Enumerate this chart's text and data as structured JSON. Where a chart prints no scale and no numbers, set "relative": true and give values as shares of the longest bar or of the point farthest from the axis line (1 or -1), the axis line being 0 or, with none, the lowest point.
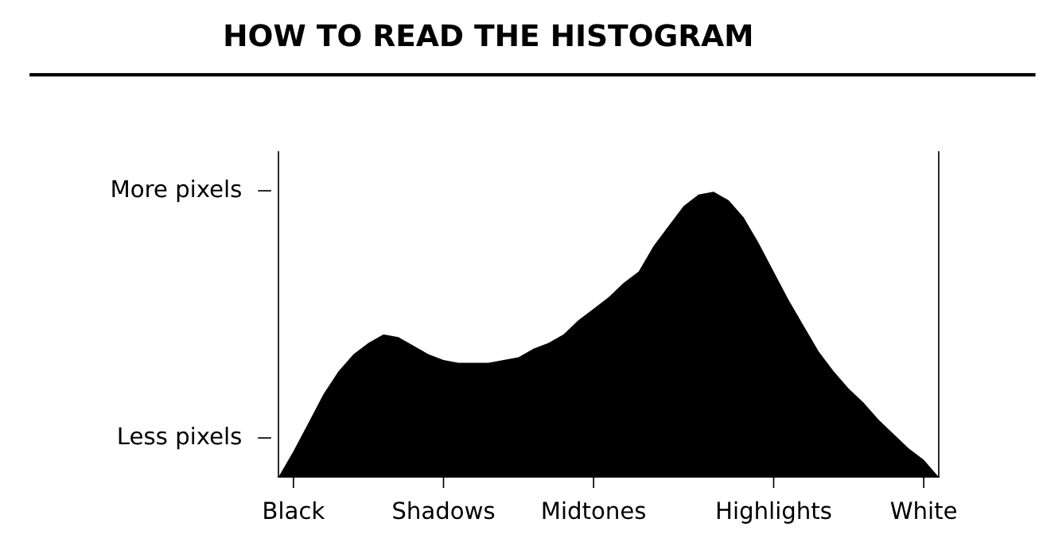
{
  "chart_data": {
    "type": "area",
    "title": "HOW TO READ THE HISTOGRAM",
    "relative": true,
    "categories": [
      null,
      "Black",
      null,
      null,
      null,
      null,
      null,
      null,
      null,
      null,
      null,
      "Shadows",
      null,
      null,
      null,
      null,
      null,
      null,
      null,
      null,
      null,
      "Midtones",
      null,
      null,
      null,
      null,
      null,
      null,
      null,
      null,
      null,
      null,
      null,
      "Highlights",
      null,
      null,
      null,
      null,
      null,
      null,
      null,
      null,
      null,
      "White",
      null
    ],
    "series": [
      {
        "color": "#000000",
        "values": [
          0,
          0.09,
          0.19,
          0.29,
          0.37,
          0.43,
          0.47,
          0.5,
          0.49,
          0.46,
          0.43,
          0.41,
          0.4,
          0.4,
          0.4,
          0.41,
          0.42,
          0.45,
          0.47,
          0.5,
          0.55,
          0.59,
          0.63,
          0.68,
          0.72,
          0.81,
          0.88,
          0.95,
          0.99,
          1.0,
          0.97,
          0.91,
          0.82,
          0.72,
          0.62,
          0.53,
          0.44,
          0.37,
          0.31,
          0.26,
          0.2,
          0.15,
          0.1,
          0.06,
          0
        ]
      }
    ],
    "annotations": [
      "More pixels",
      "Less pixels"
    ],
    "grid": false,
    "legend": false
  }
}
